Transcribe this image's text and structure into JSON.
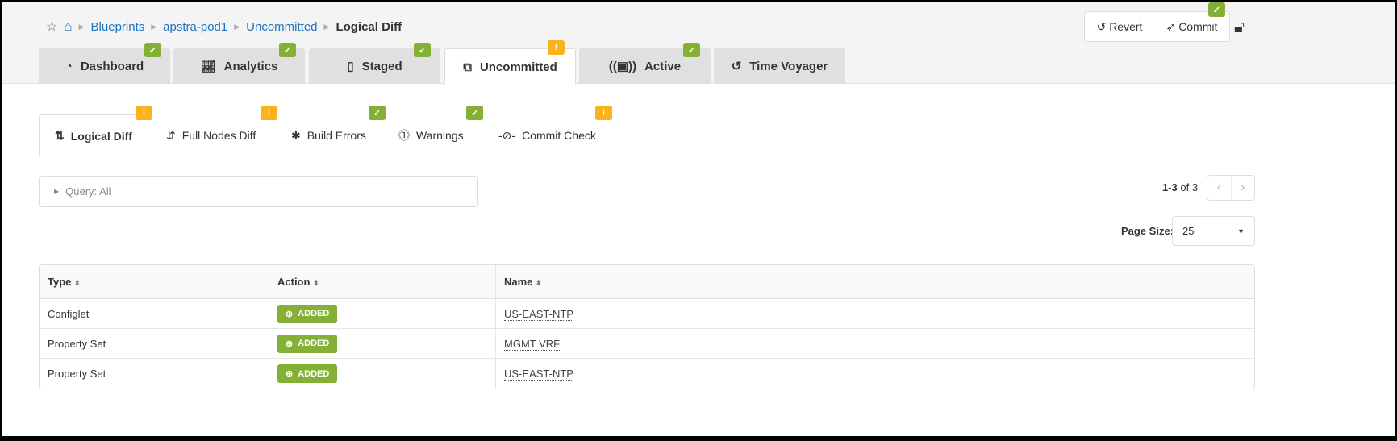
{
  "breadcrumb": {
    "items": [
      "Blueprints",
      "apstra-pod1",
      "Uncommitted"
    ],
    "current": "Logical Diff"
  },
  "tabs": [
    {
      "label": "Dashboard",
      "icon": "dashboard-icon",
      "status": "ok"
    },
    {
      "label": "Analytics",
      "icon": "analytics-icon",
      "status": "ok"
    },
    {
      "label": "Staged",
      "icon": "staged-icon",
      "status": "ok"
    },
    {
      "label": "Uncommitted",
      "icon": "uncommitted-icon",
      "status": "warning",
      "active": true
    },
    {
      "label": "Active",
      "icon": "active-icon",
      "status": "ok"
    },
    {
      "label": "Time Voyager",
      "icon": "history-icon"
    }
  ],
  "actions": {
    "revert": "Revert",
    "commit": "Commit",
    "commit_status": "ok",
    "lock": "unlocked"
  },
  "subtabs": [
    {
      "label": "Logical Diff",
      "status": "warning",
      "active": true
    },
    {
      "label": "Full Nodes Diff",
      "status": "warning"
    },
    {
      "label": "Build Errors",
      "status": "ok"
    },
    {
      "label": "Warnings",
      "status": "ok"
    },
    {
      "label": "Commit Check",
      "status": "warning"
    }
  ],
  "query": {
    "label": "Query: All"
  },
  "pagination": {
    "range": "1-3",
    "of": "of 3",
    "page_size_label": "Page Size:",
    "page_size": "25"
  },
  "table": {
    "columns": [
      "Type",
      "Action",
      "Name"
    ],
    "rows": [
      {
        "type": "Configlet",
        "action": "ADDED",
        "name": "US-EAST-NTP"
      },
      {
        "type": "Property Set",
        "action": "ADDED",
        "name": "MGMT VRF"
      },
      {
        "type": "Property Set",
        "action": "ADDED",
        "name": "US-EAST-NTP"
      }
    ]
  },
  "colors": {
    "ok": "#84b135",
    "warning": "#fbb31c",
    "link": "#1a74c4"
  }
}
